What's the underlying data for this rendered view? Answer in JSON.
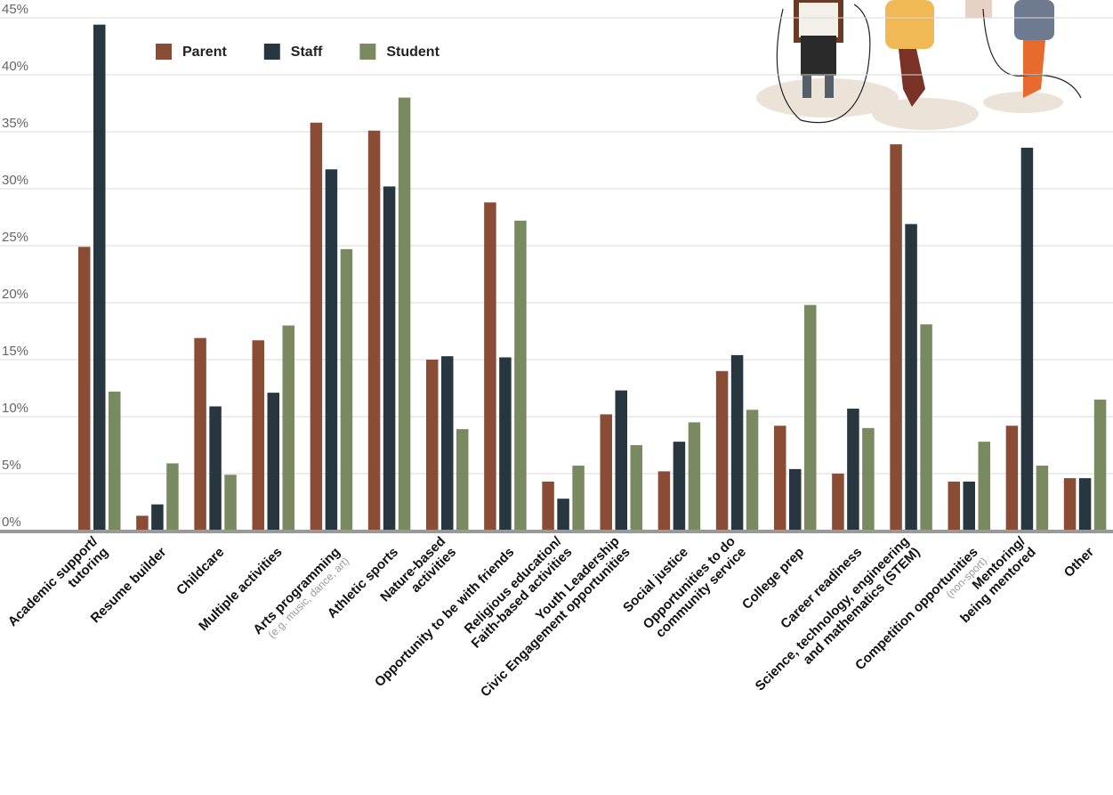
{
  "chart_data": {
    "type": "bar",
    "categories": [
      "Academic support/\ntutoring",
      "Resume builder",
      "Childcare",
      "Multiple activities",
      "Arts programming",
      "Athletic sports",
      "Nature-based\nactivities",
      "Opportunity to be with friends",
      "Religious education/\nFaith-based activities",
      "Youth Leadership\nCivic Engagement opportunities",
      "Social justice",
      "Opportunities to do\ncommunity service",
      "College prep",
      "Career readiness",
      "Science, technology, engineering\nand mathematics (STEM)",
      "Competition opportunities",
      "Mentoring/\nbeing mentored",
      "Other"
    ],
    "category_notes": [
      null,
      null,
      null,
      null,
      "(e.g. music, dance, art)",
      null,
      null,
      null,
      null,
      null,
      null,
      null,
      null,
      null,
      null,
      "(non-sport)",
      null,
      null
    ],
    "series": [
      {
        "name": "Parent",
        "color": "#8b4c36",
        "values": [
          24.9,
          1.3,
          16.9,
          16.7,
          35.8,
          35.1,
          15.0,
          28.8,
          4.3,
          10.2,
          5.2,
          14.0,
          9.2,
          5.0,
          33.9,
          4.3,
          9.2,
          4.6
        ]
      },
      {
        "name": "Staff",
        "color": "#27363f",
        "values": [
          44.4,
          2.3,
          10.9,
          12.1,
          31.7,
          30.2,
          15.3,
          15.2,
          2.8,
          12.3,
          7.8,
          15.4,
          5.4,
          10.7,
          26.9,
          4.3,
          33.6,
          4.6
        ]
      },
      {
        "name": "Student",
        "color": "#7a8a60",
        "values": [
          12.2,
          5.9,
          4.9,
          18.0,
          24.7,
          38.0,
          8.9,
          27.2,
          5.7,
          7.5,
          9.5,
          10.6,
          19.8,
          9.0,
          18.1,
          7.8,
          5.7,
          11.5
        ]
      }
    ],
    "ylim": [
      0,
      45
    ],
    "yticks": [
      {
        "value": 0,
        "label": "0%"
      },
      {
        "value": 5,
        "label": "5%"
      },
      {
        "value": 10,
        "label": "10%"
      },
      {
        "value": 15,
        "label": "15%"
      },
      {
        "value": 20,
        "label": "20%"
      },
      {
        "value": 25,
        "label": "25%"
      },
      {
        "value": 30,
        "label": "30%"
      },
      {
        "value": 35,
        "label": "35%"
      },
      {
        "value": 40,
        "label": "40%"
      },
      {
        "value": 45,
        "label": "45%"
      }
    ],
    "grid": true
  }
}
